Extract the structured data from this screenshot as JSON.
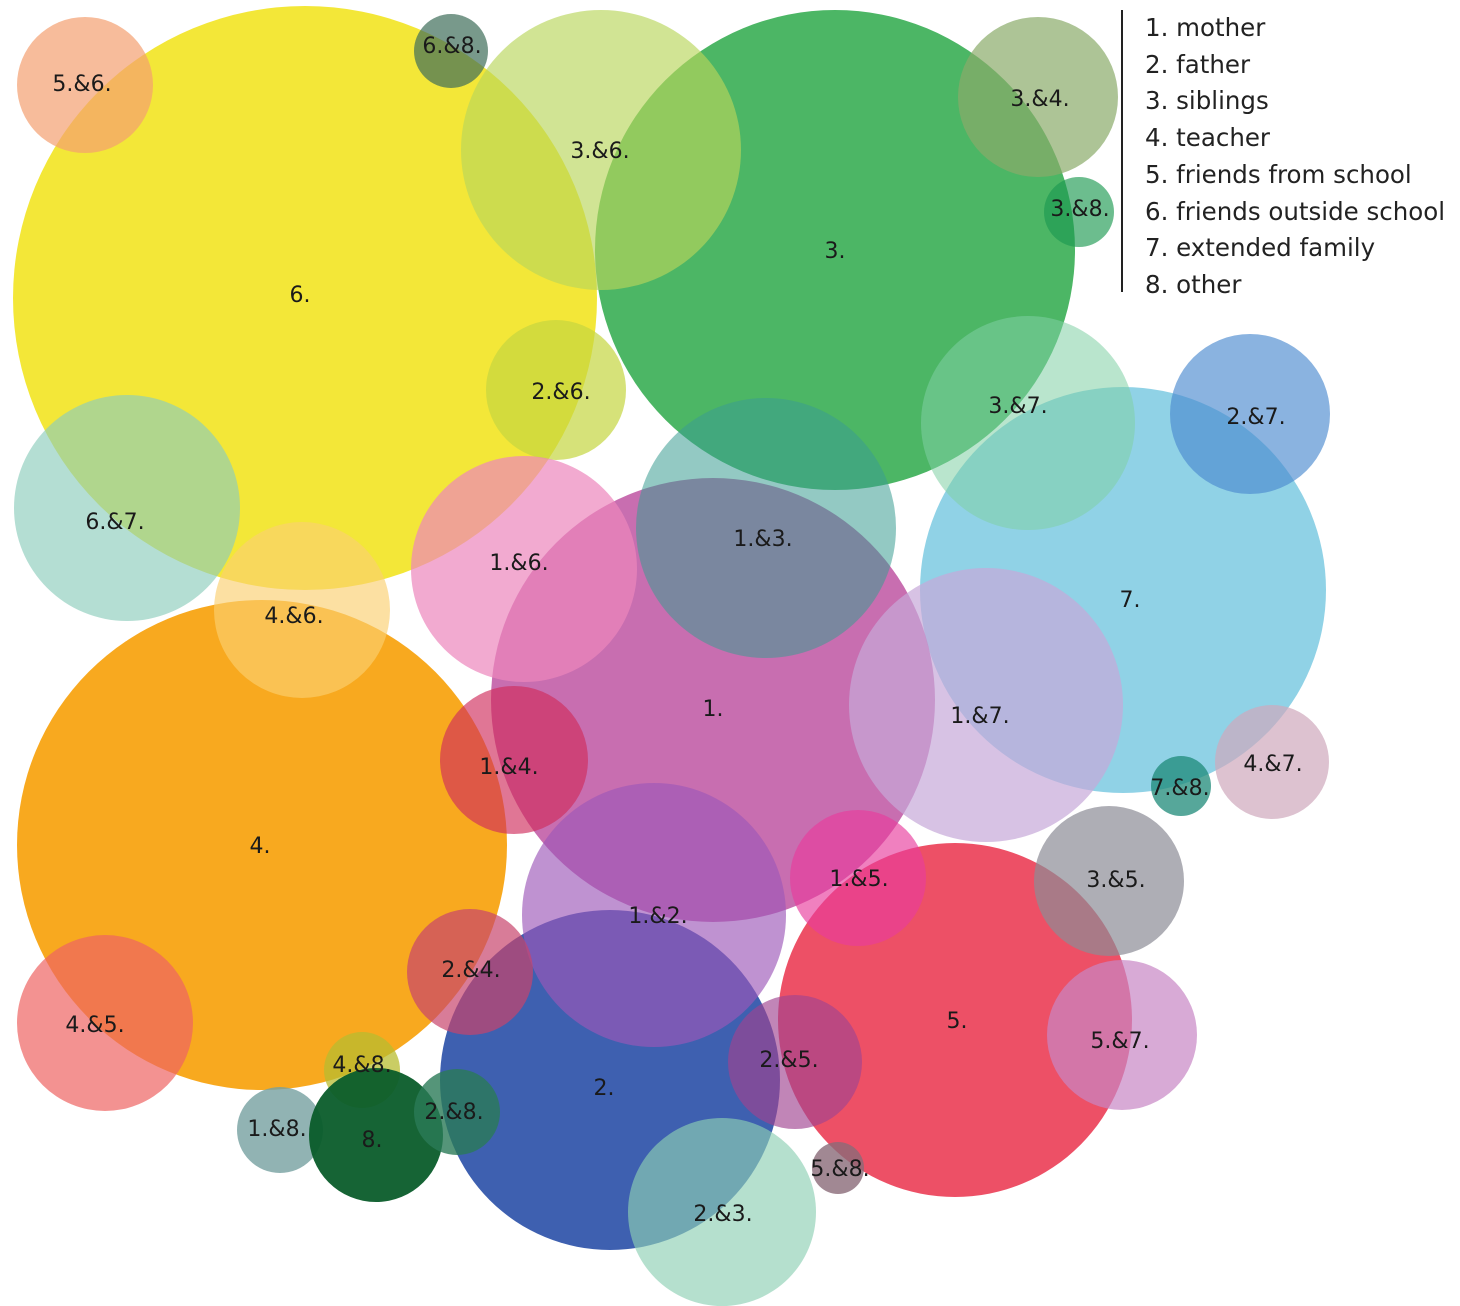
{
  "legend": [
    "1. mother",
    "2. father",
    "3. siblings",
    "4. teacher",
    "5. friends from school",
    "6. friends outside school",
    "7. extended family",
    "8. other"
  ],
  "bubbles": [
    {
      "id": "6",
      "label": "6.",
      "color": "#f0e000",
      "opacity": 0.78
    },
    {
      "id": "3",
      "label": "3.",
      "color": "#1aa23a",
      "opacity": 0.78
    },
    {
      "id": "7",
      "label": "7.",
      "color": "#6bc3de",
      "opacity": 0.75
    },
    {
      "id": "4",
      "label": "4.",
      "color": "#f79d00",
      "opacity": 0.88
    },
    {
      "id": "5",
      "label": "5.",
      "color": "#e92a44",
      "opacity": 0.82
    },
    {
      "id": "2",
      "label": "2.",
      "color": "#1c44a2",
      "opacity": 0.85
    },
    {
      "id": "1",
      "label": "1.",
      "color": "#b0308e",
      "opacity": 0.7
    },
    {
      "id": "5-6",
      "label": "5.&6.",
      "color": "#f4a070",
      "opacity": 0.7
    },
    {
      "id": "6-8",
      "label": "6.&8.",
      "color": "#3f6e5a",
      "opacity": 0.7
    },
    {
      "id": "3-6",
      "label": "3.&6.",
      "color": "#b8d65a",
      "opacity": 0.65
    },
    {
      "id": "3-4",
      "label": "3.&4.",
      "color": "#8aab6a",
      "opacity": 0.7
    },
    {
      "id": "3-8",
      "label": "3.&8.",
      "color": "#1d9a52",
      "opacity": 0.65
    },
    {
      "id": "2-6",
      "label": "2.&6.",
      "color": "#c4d640",
      "opacity": 0.7
    },
    {
      "id": "3-7",
      "label": "3.&7.",
      "color": "#7fcfa4",
      "opacity": 0.55
    },
    {
      "id": "2-7",
      "label": "2.&7.",
      "color": "#4b8ad0",
      "opacity": 0.65
    },
    {
      "id": "6-7",
      "label": "6.&7.",
      "color": "#8ccdbc",
      "opacity": 0.65
    },
    {
      "id": "1-6",
      "label": "1.&6.",
      "color": "#ec86bc",
      "opacity": 0.7
    },
    {
      "id": "1-3",
      "label": "1.&3.",
      "color": "#3a9c92",
      "opacity": 0.55
    },
    {
      "id": "4-6",
      "label": "4.&6.",
      "color": "#fbd070",
      "opacity": 0.65
    },
    {
      "id": "1-7",
      "label": "1.&7.",
      "color": "#c6a8d8",
      "opacity": 0.7
    },
    {
      "id": "4-7",
      "label": "4.&7.",
      "color": "#cfa8bc",
      "opacity": 0.7
    },
    {
      "id": "7-8",
      "label": "7.&8.",
      "color": "#1d8a78",
      "opacity": 0.75
    },
    {
      "id": "1-4",
      "label": "1.&4.",
      "color": "#d02c5c",
      "opacity": 0.65
    },
    {
      "id": "3-5",
      "label": "3.&5.",
      "color": "#8c8c96",
      "opacity": 0.7
    },
    {
      "id": "1-5",
      "label": "1.&5.",
      "color": "#e83c9c",
      "opacity": 0.65
    },
    {
      "id": "1-2",
      "label": "1.&2.",
      "color": "#9c58b8",
      "opacity": 0.65
    },
    {
      "id": "2-4",
      "label": "2.&4.",
      "color": "#c8446c",
      "opacity": 0.7
    },
    {
      "id": "4-5",
      "label": "4.&5.",
      "color": "#ee6462",
      "opacity": 0.7
    },
    {
      "id": "5-7",
      "label": "5.&7.",
      "color": "#c886c4",
      "opacity": 0.7
    },
    {
      "id": "2-5",
      "label": "2.&5.",
      "color": "#a04490",
      "opacity": 0.65
    },
    {
      "id": "4-8",
      "label": "4.&8.",
      "color": "#b8bc30",
      "opacity": 0.75
    },
    {
      "id": "1-8",
      "label": "1.&8.",
      "color": "#76a0a0",
      "opacity": 0.8
    },
    {
      "id": "8",
      "label": "8.",
      "color": "#0a5c2a",
      "opacity": 0.95
    },
    {
      "id": "2-8",
      "label": "2.&8.",
      "color": "#2a7a58",
      "opacity": 0.8
    },
    {
      "id": "5-8",
      "label": "5.&8.",
      "color": "#8a6a78",
      "opacity": 0.8
    },
    {
      "id": "2-3",
      "label": "2.&3.",
      "color": "#8ed0b4",
      "opacity": 0.65
    }
  ]
}
